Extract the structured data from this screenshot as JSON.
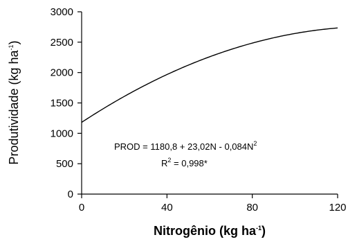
{
  "chart_data": {
    "type": "line",
    "xlabel_main": "Nitrogênio (kg ha",
    "xlabel_sup": "-1",
    "xlabel_end": ")",
    "ylabel_main": "Produtividade (kg ha",
    "ylabel_sup": "-1",
    "ylabel_end": ")",
    "xlim": [
      0,
      120
    ],
    "ylim": [
      0,
      3000
    ],
    "x_ticks": [
      0,
      40,
      80,
      120
    ],
    "y_ticks": [
      0,
      500,
      1000,
      1500,
      2000,
      2500,
      3000
    ],
    "x_tick_labels": [
      "0",
      "40",
      "80",
      "120"
    ],
    "y_tick_labels": [
      "0",
      "500",
      "1000",
      "1500",
      "2000",
      "2500",
      "3000"
    ],
    "equation": {
      "intercept": 1180.8,
      "linear": 23.02,
      "quadratic": -0.084
    },
    "equation_text_main": "PROD  =  1180,8  +  23,02N  -  0,084N",
    "equation_text_sup": "2",
    "r2_text_pre": "R",
    "r2_text_sup": "2",
    "r2_text_post": "  =  0,998*",
    "series": [
      {
        "x": [
          0,
          10,
          20,
          30,
          40,
          50,
          60,
          70,
          80,
          90,
          100,
          110,
          120
        ],
        "values": [
          1180.8,
          1402.6,
          1607.6,
          1795.8,
          1967.2,
          2121.8,
          2259.6,
          2380.6,
          2484.8,
          2572.2,
          2642.8,
          2696.6,
          2733.6
        ]
      }
    ],
    "grid": false
  }
}
